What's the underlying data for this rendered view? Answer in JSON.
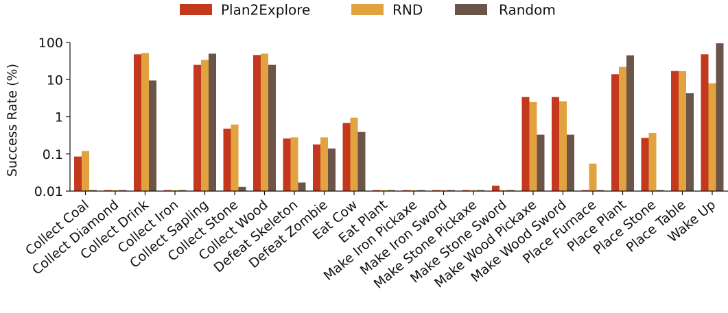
{
  "chart_data": {
    "type": "bar",
    "ylabel": "Success Rate (%)",
    "yscale": "log",
    "ylim": [
      0.01,
      100
    ],
    "yticks": [
      {
        "value": 100,
        "label": "100"
      },
      {
        "value": 10,
        "label": "10"
      },
      {
        "value": 1,
        "label": "1"
      },
      {
        "value": 0.1,
        "label": "0.1"
      },
      {
        "value": 0.01,
        "label": "0.01"
      }
    ],
    "legend_position": "top-center",
    "grid": false,
    "categories": [
      "Collect Coal",
      "Collect Diamond",
      "Collect Drink",
      "Collect Iron",
      "Collect Sapling",
      "Collect Stone",
      "Collect Wood",
      "Defeat Skeleton",
      "Defeat Zombie",
      "Eat Cow",
      "Eat Plant",
      "Make Iron Pickaxe",
      "Make Iron Sword",
      "Make Stone Pickaxe",
      "Make Stone Sword",
      "Make Wood Pickaxe",
      "Make Wood Sword",
      "Place Furnace",
      "Place Plant",
      "Place Stone",
      "Place Table",
      "Wake Up"
    ],
    "series": [
      {
        "name": "Plan2Explore",
        "color": "#c4391e",
        "values": [
          0.085,
          0.01,
          48,
          0.01,
          25,
          0.48,
          46,
          0.26,
          0.18,
          0.68,
          0.01,
          0.01,
          0.01,
          0.01,
          0.014,
          3.4,
          3.4,
          0.01,
          14,
          0.27,
          17,
          48
        ]
      },
      {
        "name": "RND",
        "color": "#e3a240",
        "values": [
          0.12,
          0.01,
          52,
          0.01,
          34,
          0.62,
          50,
          0.28,
          0.28,
          0.95,
          0.01,
          0.01,
          0.01,
          0.01,
          0.01,
          2.5,
          2.6,
          0.055,
          22,
          0.37,
          17,
          8
        ]
      },
      {
        "name": "Random",
        "color": "#6b5448",
        "values": [
          0.01,
          0.01,
          9.5,
          0.01,
          50,
          0.013,
          25,
          0.017,
          0.14,
          0.39,
          0.01,
          0.01,
          0.01,
          0.01,
          0.01,
          0.33,
          0.33,
          0.01,
          45,
          0.01,
          4.3,
          95
        ]
      }
    ]
  }
}
